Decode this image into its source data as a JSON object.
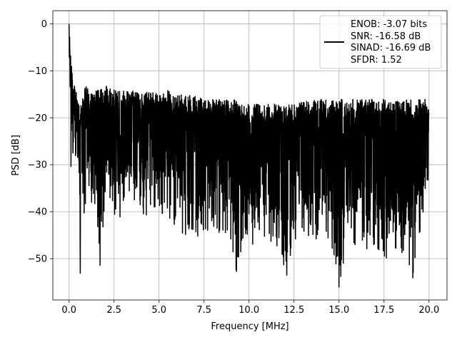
{
  "chart_data": {
    "type": "line",
    "title": "",
    "xlabel": "Frequency [MHz]",
    "ylabel": "PSD [dB]",
    "xlim": [
      -0.9,
      21.0
    ],
    "ylim": [
      -58.8,
      2.8
    ],
    "xticks": [
      0.0,
      2.5,
      5.0,
      7.5,
      10.0,
      12.5,
      15.0,
      17.5,
      20.0
    ],
    "xtick_labels": [
      "0.0",
      "2.5",
      "5.0",
      "7.5",
      "10.0",
      "12.5",
      "15.0",
      "17.5",
      "20.0"
    ],
    "yticks": [
      0,
      -10,
      -20,
      -30,
      -40,
      -50
    ],
    "ytick_labels": [
      "0",
      "−10",
      "−20",
      "−30",
      "−40",
      "−50"
    ],
    "grid": true,
    "line_color": "#000000",
    "legend": {
      "placement": "top-right",
      "entries": [
        "ENOB: -3.07 bits",
        "SNR: -16.58 dB",
        "SINAD: -16.69 dB",
        "SFDR: 1.52"
      ]
    },
    "series": [
      {
        "x": [
          0.0,
          0.02,
          0.04,
          0.06,
          0.08,
          0.1,
          0.12,
          0.15,
          0.18,
          0.22,
          0.26,
          0.3,
          0.35,
          0.4,
          0.45,
          0.5,
          0.55,
          0.62,
          0.7,
          0.8,
          0.95,
          1.2,
          1.4,
          1.72,
          2.0,
          2.5,
          3.0,
          3.5,
          4.0,
          4.5,
          5.0,
          5.5,
          5.8,
          6.0,
          6.5,
          6.8,
          7.0,
          7.5,
          7.7,
          8.0,
          8.5,
          9.0,
          9.3,
          9.5,
          10.0,
          10.5,
          11.0,
          11.5,
          12.1,
          12.5,
          13.0,
          13.5,
          14.0,
          14.6,
          15.0,
          15.5,
          16.0,
          16.5,
          17.0,
          17.5,
          18.0,
          18.5,
          19.0,
          19.1,
          19.5,
          20.0
        ],
        "y_upper": [
          0,
          -3,
          -2,
          -9,
          -5,
          -7,
          -10,
          -8,
          -11,
          -13,
          -15,
          -12,
          -14,
          -13,
          -15,
          -16,
          -17,
          -17,
          -16,
          -15,
          -12,
          -15,
          -14,
          -14,
          -13,
          -14,
          -14,
          -14,
          -15,
          -14,
          -15,
          -14,
          -15,
          -15,
          -15,
          -15,
          -15,
          -16,
          -16,
          -16,
          -16,
          -16,
          -16,
          -17,
          -17,
          -17,
          -17,
          -17,
          -17,
          -17,
          -16,
          -16,
          -16,
          -16,
          -16,
          -16,
          -16,
          -16,
          -16,
          -16,
          -16,
          -16,
          -16,
          -16,
          -16,
          -16
        ],
        "y_lower": [
          -17,
          -20,
          -23,
          -26,
          -28,
          -30,
          -32,
          -34,
          -35,
          -34,
          -33,
          -32,
          -34,
          -35,
          -36,
          -36,
          -37,
          -53,
          -38,
          -44,
          -39,
          -38,
          -39,
          -51,
          -40,
          -41,
          -42,
          -40,
          -41,
          -42,
          -41,
          -42,
          -45,
          -43,
          -46,
          -44,
          -48,
          -45,
          -47,
          -43,
          -46,
          -47,
          -53,
          -50,
          -49,
          -46,
          -49,
          -47,
          -54,
          -47,
          -46,
          -48,
          -45,
          -50,
          -56,
          -47,
          -48,
          -49,
          -47,
          -51,
          -49,
          -49,
          -52,
          -54,
          -46,
          -40
        ],
        "peaks": [
          {
            "x": 0.62,
            "y": -53.2
          },
          {
            "x": 1.72,
            "y": -51.5
          },
          {
            "x": 9.3,
            "y": -52.8
          },
          {
            "x": 12.1,
            "y": -53.6
          },
          {
            "x": 15.0,
            "y": -56.1
          },
          {
            "x": 19.1,
            "y": -54.2
          }
        ]
      }
    ]
  }
}
